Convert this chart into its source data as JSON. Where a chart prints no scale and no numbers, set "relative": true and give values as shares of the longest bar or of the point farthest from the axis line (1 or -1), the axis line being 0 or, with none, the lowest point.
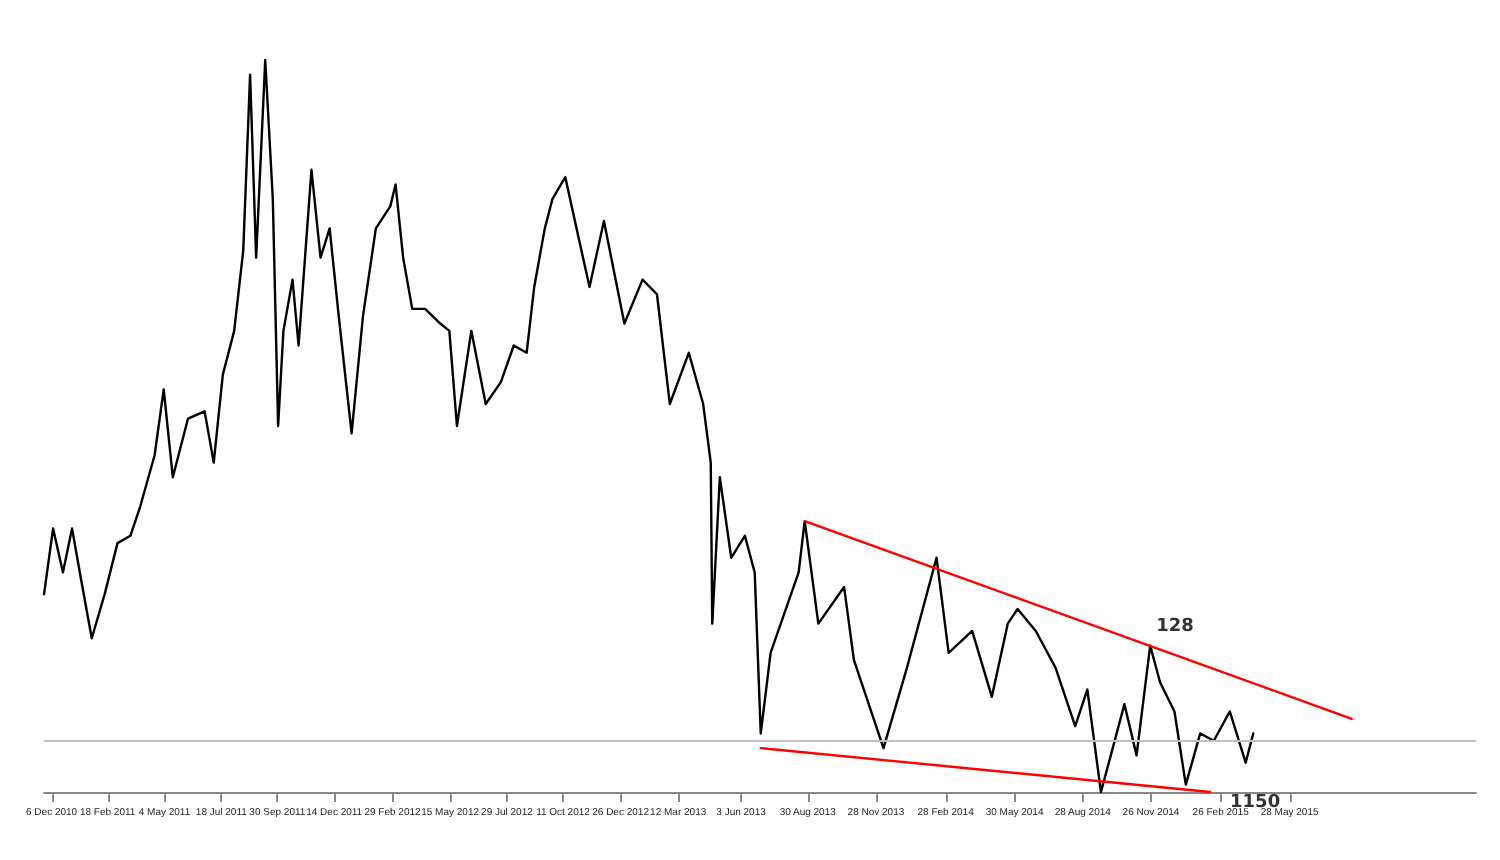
{
  "chart_data": {
    "type": "line",
    "relative": true,
    "marker": "none",
    "line_style": "solid",
    "grid": false,
    "x": [
      "2010-11-26",
      "2010-12-08",
      "2010-12-21",
      "2011-01-02",
      "2011-01-14",
      "2011-01-28",
      "2011-02-14",
      "2011-03-03",
      "2011-03-20",
      "2011-04-02",
      "2011-04-21",
      "2011-05-03",
      "2011-05-15",
      "2011-06-04",
      "2011-06-26",
      "2011-07-08",
      "2011-07-20",
      "2011-08-04",
      "2011-08-16",
      "2011-08-25",
      "2011-09-02",
      "2011-09-14",
      "2011-09-24",
      "2011-10-01",
      "2011-10-08",
      "2011-10-20",
      "2011-10-28",
      "2011-11-14",
      "2011-11-26",
      "2011-12-08",
      "2011-12-20",
      "2012-01-06",
      "2012-01-21",
      "2012-02-07",
      "2012-02-26",
      "2012-03-04",
      "2012-03-14",
      "2012-03-26",
      "2012-04-12",
      "2012-05-02",
      "2012-05-14",
      "2012-05-24",
      "2012-06-12",
      "2012-07-01",
      "2012-07-21",
      "2012-08-07",
      "2012-08-24",
      "2012-09-03",
      "2012-09-17",
      "2012-09-27",
      "2012-10-14",
      "2012-10-31",
      "2012-11-15",
      "2012-12-04",
      "2012-12-31",
      "2013-01-24",
      "2013-02-12",
      "2013-03-01",
      "2013-03-26",
      "2013-04-14",
      "2013-04-24",
      "2013-04-26",
      "2013-05-06",
      "2013-05-21",
      "2013-06-08",
      "2013-06-21",
      "2013-06-29",
      "2013-07-12",
      "2013-08-18",
      "2013-08-26",
      "2013-09-13",
      "2013-10-17",
      "2013-10-30",
      "2013-12-08",
      "2014-01-08",
      "2014-02-16",
      "2014-03-04",
      "2014-04-04",
      "2014-04-30",
      "2014-05-21",
      "2014-06-03",
      "2014-06-27",
      "2014-07-23",
      "2014-08-18",
      "2014-09-03",
      "2014-09-21",
      "2014-10-04",
      "2014-10-22",
      "2014-11-07",
      "2014-11-25",
      "2014-12-08",
      "2014-12-27",
      "2015-01-11",
      "2015-01-30",
      "2015-02-17",
      "2015-03-10",
      "2015-03-31",
      "2015-04-10"
    ],
    "xlim": [
      "2010-11-26",
      "2016-01-29"
    ],
    "xticks": [
      {
        "value": "2010-12-06",
        "label": "6 Dec 2010"
      },
      {
        "value": "2011-02-18",
        "label": "18 Feb 2011"
      },
      {
        "value": "2011-05-04",
        "label": "4 May 2011"
      },
      {
        "value": "2011-07-18",
        "label": "18 Jul 2011"
      },
      {
        "value": "2011-09-30",
        "label": "30 Sep 2011"
      },
      {
        "value": "2011-12-14",
        "label": "14 Dec 2011"
      },
      {
        "value": "2012-02-29",
        "label": "29 Feb 2012"
      },
      {
        "value": "2012-05-15",
        "label": "15 May 2012"
      },
      {
        "value": "2012-07-29",
        "label": "29 Jul 2012"
      },
      {
        "value": "2012-10-11",
        "label": "11 Oct 2012"
      },
      {
        "value": "2012-12-26",
        "label": "26 Dec 2012"
      },
      {
        "value": "2013-03-12",
        "label": "12 Mar 2013"
      },
      {
        "value": "2013-06-03",
        "label": "3 Jun 2013"
      },
      {
        "value": "2013-08-30",
        "label": "30 Aug 2013"
      },
      {
        "value": "2013-11-28",
        "label": "28 Nov 2013"
      },
      {
        "value": "2014-02-28",
        "label": "28 Feb 2014"
      },
      {
        "value": "2014-05-30",
        "label": "30 May 2014"
      },
      {
        "value": "2014-08-28",
        "label": "28 Aug 2014"
      },
      {
        "value": "2014-11-26",
        "label": "26 Nov 2014"
      },
      {
        "value": "2015-02-26",
        "label": "26 Feb 2015"
      },
      {
        "value": "2015-05-28",
        "label": "28 May 2015"
      }
    ],
    "series": [
      {
        "color": "#000000",
        "values": [
          0.27,
          0.36,
          0.3,
          0.36,
          0.29,
          0.21,
          0.27,
          0.34,
          0.35,
          0.39,
          0.46,
          0.55,
          0.43,
          0.51,
          0.52,
          0.45,
          0.57,
          0.63,
          0.74,
          0.98,
          0.73,
          1.0,
          0.81,
          0.5,
          0.63,
          0.7,
          0.61,
          0.85,
          0.73,
          0.77,
          0.65,
          0.49,
          0.65,
          0.77,
          0.8,
          0.83,
          0.73,
          0.66,
          0.66,
          0.64,
          0.63,
          0.5,
          0.63,
          0.53,
          0.56,
          0.61,
          0.6,
          0.69,
          0.77,
          0.81,
          0.84,
          0.76,
          0.69,
          0.78,
          0.64,
          0.7,
          0.68,
          0.53,
          0.6,
          0.53,
          0.45,
          0.23,
          0.43,
          0.32,
          0.35,
          0.3,
          0.08,
          0.19,
          0.3,
          0.37,
          0.23,
          0.28,
          0.18,
          0.06,
          0.17,
          0.32,
          0.19,
          0.22,
          0.13,
          0.23,
          0.25,
          0.22,
          0.17,
          0.09,
          0.14,
          0.0,
          0.05,
          0.12,
          0.05,
          0.2,
          0.15,
          0.11,
          0.01,
          0.08,
          0.07,
          0.11,
          0.04,
          0.08
        ]
      },
      {
        "color": "#ff0000",
        "x": [
          "2013-08-26",
          "2015-08-18"
        ],
        "values": [
          0.37,
          0.1
        ]
      },
      {
        "color": "#ff0000",
        "x": [
          "2013-06-29",
          "2015-02-12"
        ],
        "values": [
          0.06,
          0.0
        ]
      }
    ],
    "ref_lines": [
      {
        "axis": "y",
        "value": 0.07,
        "color": "#c0c0c0"
      }
    ],
    "annotations": [
      {
        "text": "128",
        "x": "2014-11-25",
        "y": 0.2
      },
      {
        "text": "1150",
        "x": "2015-02-12",
        "y": 0.0
      }
    ]
  }
}
